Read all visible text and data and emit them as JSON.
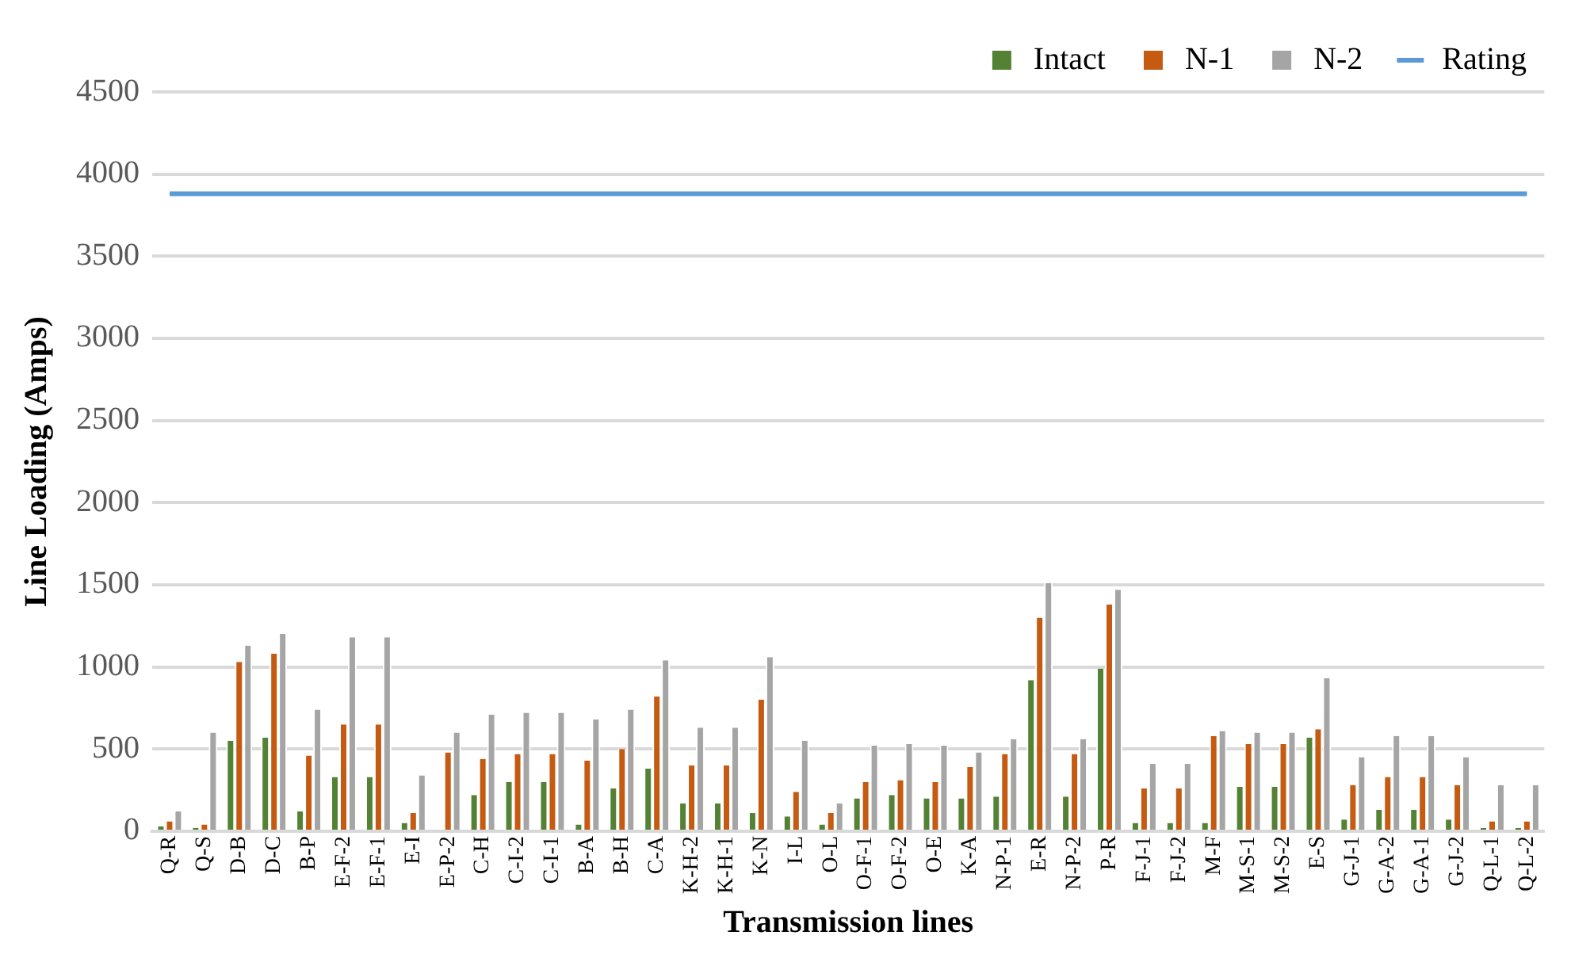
{
  "chart_data": {
    "type": "bar",
    "xlabel": "Transmission lines",
    "ylabel": "Line Loading (Amps)",
    "categories": [
      "Q-R",
      "Q-S",
      "D-B",
      "D-C",
      "B-P",
      "E-F-2",
      "E-F-1",
      "E-I",
      "E-P-2",
      "C-H",
      "C-I-2",
      "C-I-1",
      "B-A",
      "B-H",
      "C-A",
      "K-H-2",
      "K-H-1",
      "K-N",
      "I-L",
      "O-L",
      "O-F-1",
      "O-F-2",
      "O-E",
      "K-A",
      "N-P-1",
      "E-R",
      "N-P-2",
      "P-R",
      "F-J-1",
      "F-J-2",
      "M-F",
      "M-S-1",
      "M-S-2",
      "E-S",
      "G-J-1",
      "G-A-2",
      "G-A-1",
      "G-J-2",
      "Q-L-1",
      "Q-L-2"
    ],
    "series": [
      {
        "name": "Intact",
        "color": "#548235",
        "values": [
          30,
          20,
          550,
          570,
          120,
          330,
          330,
          50,
          0,
          220,
          300,
          300,
          40,
          260,
          380,
          170,
          170,
          110,
          90,
          40,
          200,
          220,
          200,
          200,
          210,
          920,
          210,
          990,
          50,
          50,
          50,
          270,
          270,
          570,
          70,
          130,
          130,
          70,
          20,
          20
        ]
      },
      {
        "name": "N-1",
        "color": "#c55a11",
        "values": [
          60,
          40,
          1030,
          1080,
          460,
          650,
          650,
          110,
          480,
          440,
          470,
          470,
          430,
          500,
          820,
          400,
          400,
          800,
          240,
          110,
          300,
          310,
          300,
          390,
          470,
          1300,
          470,
          1380,
          260,
          260,
          580,
          530,
          530,
          620,
          280,
          330,
          330,
          280,
          60,
          60
        ]
      },
      {
        "name": "N-2",
        "color": "#a5a5a5",
        "values": [
          120,
          600,
          1130,
          1200,
          740,
          1180,
          1180,
          340,
          600,
          710,
          720,
          720,
          680,
          740,
          1040,
          630,
          630,
          1060,
          550,
          170,
          520,
          530,
          520,
          480,
          560,
          1510,
          560,
          1470,
          410,
          410,
          610,
          600,
          600,
          930,
          450,
          580,
          580,
          450,
          280,
          280
        ]
      },
      {
        "name": "Rating",
        "type": "line",
        "color": "#5b9bd5",
        "values": [
          3880,
          3880,
          3880,
          3880,
          3880,
          3880,
          3880,
          3880,
          3880,
          3880,
          3880,
          3880,
          3880,
          3880,
          3880,
          3880,
          3880,
          3880,
          3880,
          3880,
          3880,
          3880,
          3880,
          3880,
          3880,
          3880,
          3880,
          3880,
          3880,
          3880,
          3880,
          3880,
          3880,
          3880,
          3880,
          3880,
          3880,
          3880,
          3880,
          3880
        ]
      }
    ],
    "ylim": [
      0,
      4500
    ],
    "yticks": [
      0,
      500,
      1000,
      1500,
      2000,
      2500,
      3000,
      3500,
      4000,
      4500
    ],
    "grid": "y",
    "legend": "top right",
    "marker": "none"
  }
}
